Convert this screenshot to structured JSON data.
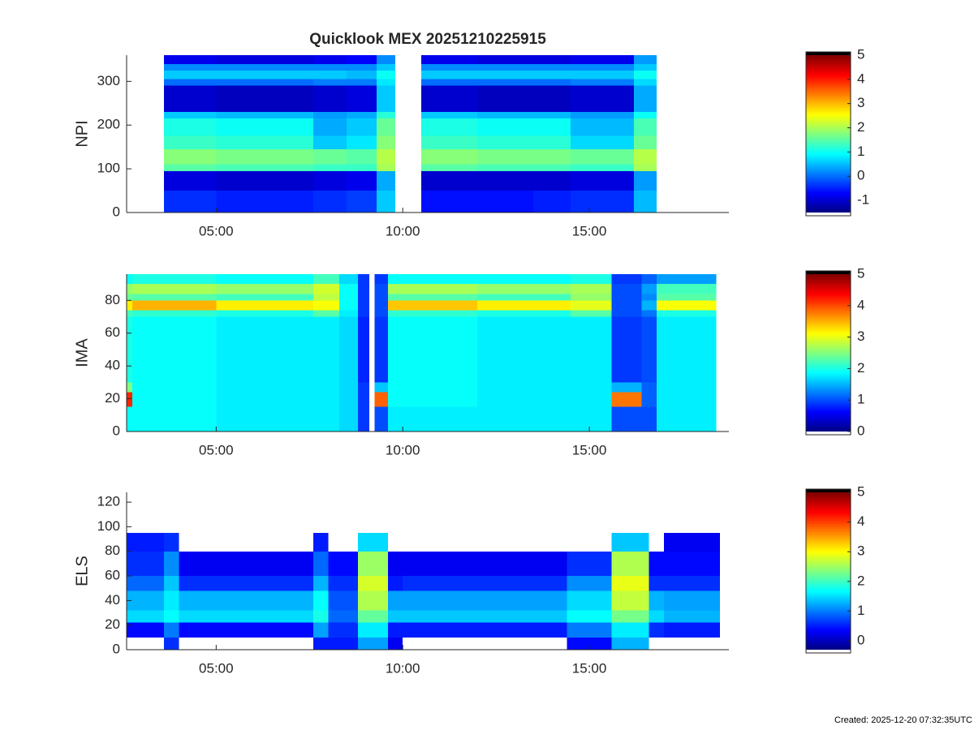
{
  "chart_data": [
    {
      "type": "heatmap",
      "title": "Quicklook MEX 20251210225915",
      "ylabel": "NPI",
      "colormap": "jet",
      "xlim": [
        2.6,
        18.74
      ],
      "xticks": [
        {
          "value": 5,
          "label": "05:00"
        },
        {
          "value": 10,
          "label": "10:00"
        },
        {
          "value": 15,
          "label": "15:00"
        }
      ],
      "ylim": [
        0,
        360
      ],
      "yticks": [
        0,
        100,
        200,
        300
      ],
      "clim": [
        -1.5,
        5
      ],
      "cticks": [
        -1,
        0,
        1,
        2,
        3,
        4,
        5
      ],
      "x": [
        3.6,
        5,
        6.5,
        7.6,
        8.5,
        9.3,
        9.8,
        10.5,
        12,
        13.5,
        14.5,
        16.2,
        16.8
      ],
      "y": [
        0,
        50,
        95,
        110,
        145,
        175,
        215,
        230,
        290,
        305,
        325,
        340,
        360
      ],
      "z": [
        [
          -0.4,
          -0.5,
          -0.5,
          -0.4,
          -0.3,
          0.6,
          null,
          -0.6,
          -0.6,
          -0.5,
          -0.4,
          0.5
        ],
        [
          -0.9,
          -1,
          -1,
          -0.9,
          -0.8,
          0.4,
          null,
          -1,
          -1,
          -1,
          -0.9,
          0.3
        ],
        [
          1.5,
          1.4,
          1.4,
          1.3,
          1.3,
          2,
          null,
          1.5,
          1.4,
          1.4,
          1.3,
          2
        ],
        [
          1.8,
          1.7,
          1.7,
          1.6,
          1.5,
          2.1,
          null,
          1.8,
          1.7,
          1.7,
          1.6,
          2.1
        ],
        [
          1.3,
          1.2,
          1.2,
          0.6,
          0.8,
          1.8,
          null,
          1.3,
          1.2,
          1.2,
          0.7,
          1.6
        ],
        [
          1.1,
          1,
          1,
          0.4,
          0.6,
          1.6,
          null,
          1.1,
          1,
          1,
          0.5,
          1.4
        ],
        [
          0.6,
          0.5,
          0.5,
          0.3,
          0.4,
          1.2,
          null,
          0.6,
          0.5,
          0.5,
          0.3,
          1
        ],
        [
          -1,
          -1.1,
          -1.1,
          -1,
          -0.9,
          0.6,
          null,
          -1,
          -1.1,
          -1.1,
          -1,
          0.4
        ],
        [
          0,
          0,
          0,
          0.1,
          0.1,
          0.8,
          null,
          0,
          0,
          0,
          0.1,
          0.7
        ],
        [
          0.6,
          0.6,
          0.6,
          0.6,
          0.5,
          1,
          null,
          0.6,
          0.6,
          0.6,
          0.6,
          1
        ],
        [
          0.2,
          0.2,
          0.2,
          0.2,
          0.2,
          0.6,
          null,
          0.2,
          0.2,
          0.2,
          0.2,
          0.6
        ],
        [
          -0.8,
          -0.9,
          -0.9,
          -0.8,
          -0.7,
          0.2,
          null,
          -0.8,
          -0.9,
          -0.9,
          -0.8,
          0.3
        ]
      ]
    },
    {
      "type": "heatmap",
      "ylabel": "IMA",
      "colormap": "jet",
      "xlim": [
        2.6,
        18.74
      ],
      "xticks": [
        {
          "value": 5,
          "label": "05:00"
        },
        {
          "value": 10,
          "label": "10:00"
        },
        {
          "value": 15,
          "label": "15:00"
        }
      ],
      "ylim": [
        0,
        96
      ],
      "yticks": [
        0,
        20,
        40,
        60,
        80
      ],
      "clim": [
        0,
        5
      ],
      "cticks": [
        0,
        1,
        2,
        3,
        4,
        5
      ],
      "x": [
        2.6,
        2.75,
        5,
        7.6,
        8.3,
        8.8,
        9.1,
        9.25,
        9.6,
        12,
        14.5,
        15.6,
        16.4,
        16.8,
        18.4
      ],
      "y": [
        0,
        15,
        24,
        30,
        70,
        74,
        80,
        84,
        90,
        96
      ],
      "z": [
        [
          1.9,
          1.9,
          1.8,
          1.8,
          1.7,
          0.9,
          null,
          1,
          1.8,
          1.8,
          1.8,
          1,
          1,
          1.8
        ],
        [
          4.2,
          1.9,
          1.8,
          1.8,
          1.7,
          0.9,
          null,
          3.9,
          1.9,
          1.8,
          1.8,
          3.8,
          1.1,
          1.8
        ],
        [
          2.5,
          1.9,
          1.8,
          1.8,
          1.7,
          0.9,
          null,
          1.6,
          1.9,
          1.8,
          1.8,
          1.5,
          1.1,
          1.8
        ],
        [
          2,
          1.9,
          1.8,
          1.8,
          1.7,
          0.8,
          null,
          0.9,
          1.9,
          1.8,
          1.8,
          0.9,
          1,
          1.8
        ],
        [
          2.2,
          2.1,
          2,
          2.3,
          1.8,
          0.9,
          null,
          1,
          2.1,
          2,
          2.3,
          1,
          1.2,
          2
        ],
        [
          3.2,
          3.5,
          3.2,
          3.1,
          1.9,
          0.9,
          null,
          1,
          3.4,
          3.2,
          3,
          1,
          1.5,
          3.1
        ],
        [
          2.4,
          2.3,
          2.2,
          2.8,
          1.9,
          0.9,
          null,
          1,
          2.3,
          2.2,
          2.6,
          1,
          1.3,
          2.3
        ],
        [
          2.6,
          2.7,
          2.6,
          2.9,
          1.9,
          0.9,
          null,
          1,
          2.7,
          2.6,
          2.7,
          1,
          1.4,
          2.2
        ],
        [
          1.9,
          2,
          1.9,
          2.2,
          1.7,
          0.9,
          null,
          0.9,
          1.9,
          1.9,
          2,
          0.9,
          1.1,
          1.4
        ]
      ]
    },
    {
      "type": "heatmap",
      "ylabel": "ELS",
      "colormap": "jet",
      "xlim": [
        2.6,
        18.74
      ],
      "xticks": [
        {
          "value": 5,
          "label": "05:00"
        },
        {
          "value": 10,
          "label": "10:00"
        },
        {
          "value": 15,
          "label": "15:00"
        }
      ],
      "ylim": [
        0,
        128
      ],
      "yticks": [
        0,
        20,
        40,
        60,
        80,
        100,
        120
      ],
      "clim": [
        -0.3,
        5
      ],
      "cticks": [
        0,
        1,
        2,
        3,
        4,
        5
      ],
      "x": [
        2.6,
        3.6,
        4,
        7.6,
        8,
        8.8,
        9.6,
        10,
        14.4,
        15.6,
        16.6,
        17,
        18.5
      ],
      "y": [
        0,
        10,
        22,
        32,
        48,
        60,
        80,
        95,
        128
      ],
      "z": [
        [
          null,
          0.6,
          null,
          0.5,
          0.5,
          1.2,
          0.3,
          null,
          0.4,
          1.3,
          null,
          null
        ],
        [
          0.4,
          1,
          0.4,
          1.2,
          0.6,
          1.6,
          0.5,
          0.5,
          1,
          1.6,
          0.6,
          0.5
        ],
        [
          1.5,
          1.7,
          1.5,
          1.8,
          0.9,
          2.2,
          1.4,
          1.4,
          1.7,
          2.3,
          1.5,
          1.3
        ],
        [
          1.3,
          1.6,
          1.3,
          1.7,
          0.8,
          2.6,
          1.2,
          1.2,
          1.5,
          2.7,
          1.3,
          1.2
        ],
        [
          0.9,
          1.4,
          0.6,
          1.3,
          0.6,
          2.8,
          0.5,
          0.6,
          1.1,
          2.9,
          0.6,
          0.6
        ],
        [
          0.6,
          1.1,
          0.3,
          0.9,
          0.4,
          2.5,
          0.3,
          0.3,
          0.6,
          2.6,
          0.4,
          0.4
        ],
        [
          0.5,
          0.6,
          null,
          0.5,
          null,
          1.5,
          null,
          null,
          null,
          1.4,
          null,
          0.3
        ],
        [
          null,
          null,
          null,
          null,
          null,
          null,
          null,
          null,
          null,
          null,
          null,
          null
        ]
      ]
    }
  ],
  "footer": "Created: 2025-12-20 07:32:35UTC"
}
